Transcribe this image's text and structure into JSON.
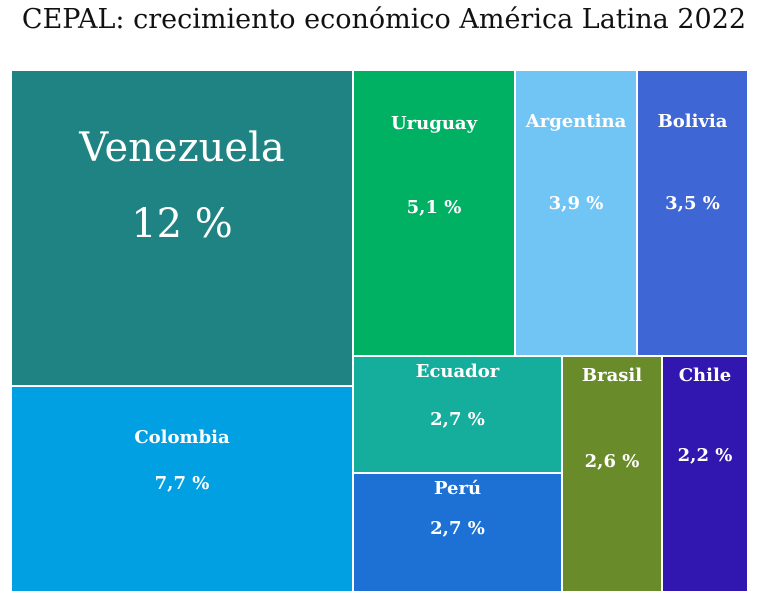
{
  "title": "CEPAL: crecimiento económico América Latina 2022",
  "chart_data": {
    "type": "treemap",
    "title": "CEPAL: crecimiento económico América Latina 2022",
    "unit": "%",
    "items": [
      {
        "name": "Venezuela",
        "value": 12,
        "value_label": "12 %",
        "color": "#1f8383"
      },
      {
        "name": "Colombia",
        "value": 7.7,
        "value_label": "7,7 %",
        "color": "#00a0e3"
      },
      {
        "name": "Uruguay",
        "value": 5.1,
        "value_label": "5,1 %",
        "color": "#00b164"
      },
      {
        "name": "Argentina",
        "value": 3.9,
        "value_label": "3,9 %",
        "color": "#71c5f5"
      },
      {
        "name": "Bolivia",
        "value": 3.5,
        "value_label": "3,5 %",
        "color": "#3f66d5"
      },
      {
        "name": "Ecuador",
        "value": 2.7,
        "value_label": "2,7 %",
        "color": "#15ad9c"
      },
      {
        "name": "Perú",
        "value": 2.7,
        "value_label": "2,7 %",
        "color": "#1d70d4"
      },
      {
        "name": "Brasil",
        "value": 2.6,
        "value_label": "2,6  %",
        "color": "#6a8b2a"
      },
      {
        "name": "Chile",
        "value": 2.2,
        "value_label": "2,2 %",
        "color": "#3116b0"
      }
    ]
  }
}
